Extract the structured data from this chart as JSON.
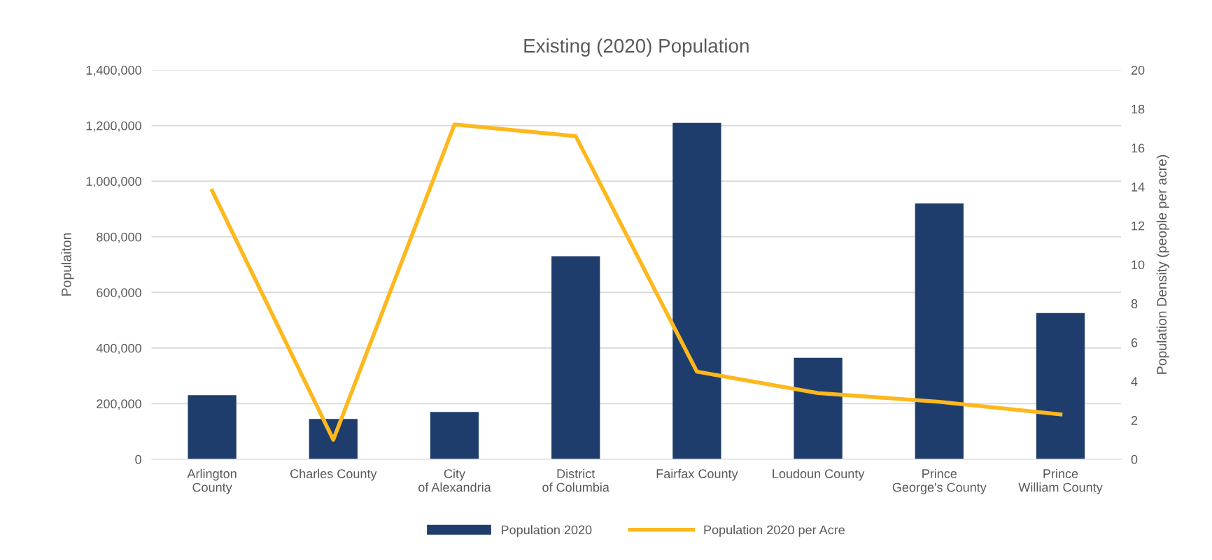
{
  "chart_data": {
    "type": "bar",
    "title": "Existing (2020) Population",
    "ylabel": "Populaiton",
    "y2label": "Population Density (people per acre)",
    "categories": [
      "Arlington County",
      "Charles County",
      "City of Alexandria",
      "District of Columbia",
      "Fairfax County",
      "Loudoun County",
      "Prince George's County",
      "Prince William County"
    ],
    "series": [
      {
        "name": "Population 2020",
        "color": "#1f3d6c",
        "values": [
          230000,
          145000,
          170000,
          730000,
          1210000,
          365000,
          920000,
          526000
        ]
      },
      {
        "name": "Population 2020 per Acre",
        "type": "line",
        "axis": "y2",
        "color": "#fdb81e",
        "values": [
          13.8,
          1.0,
          17.2,
          16.6,
          4.5,
          3.4,
          2.95,
          2.3
        ]
      }
    ],
    "ylim": [
      0,
      1400000
    ],
    "yticks": [
      {
        "value": 0,
        "label": "0"
      },
      {
        "value": 200000,
        "label": "200,000"
      },
      {
        "value": 400000,
        "label": "400,000"
      },
      {
        "value": 600000,
        "label": "600,000"
      },
      {
        "value": 800000,
        "label": "800,000"
      },
      {
        "value": 1000000,
        "label": "1,000,000"
      },
      {
        "value": 1200000,
        "label": "1,200,000"
      },
      {
        "value": 1400000,
        "label": "1,400,000"
      }
    ],
    "y2lim": [
      0,
      20
    ],
    "y2ticks": [
      0,
      2,
      4,
      6,
      8,
      10,
      12,
      14,
      16,
      18,
      20
    ],
    "grid": "y",
    "legend": "bottom",
    "marker": "none",
    "line_style": "solid"
  }
}
